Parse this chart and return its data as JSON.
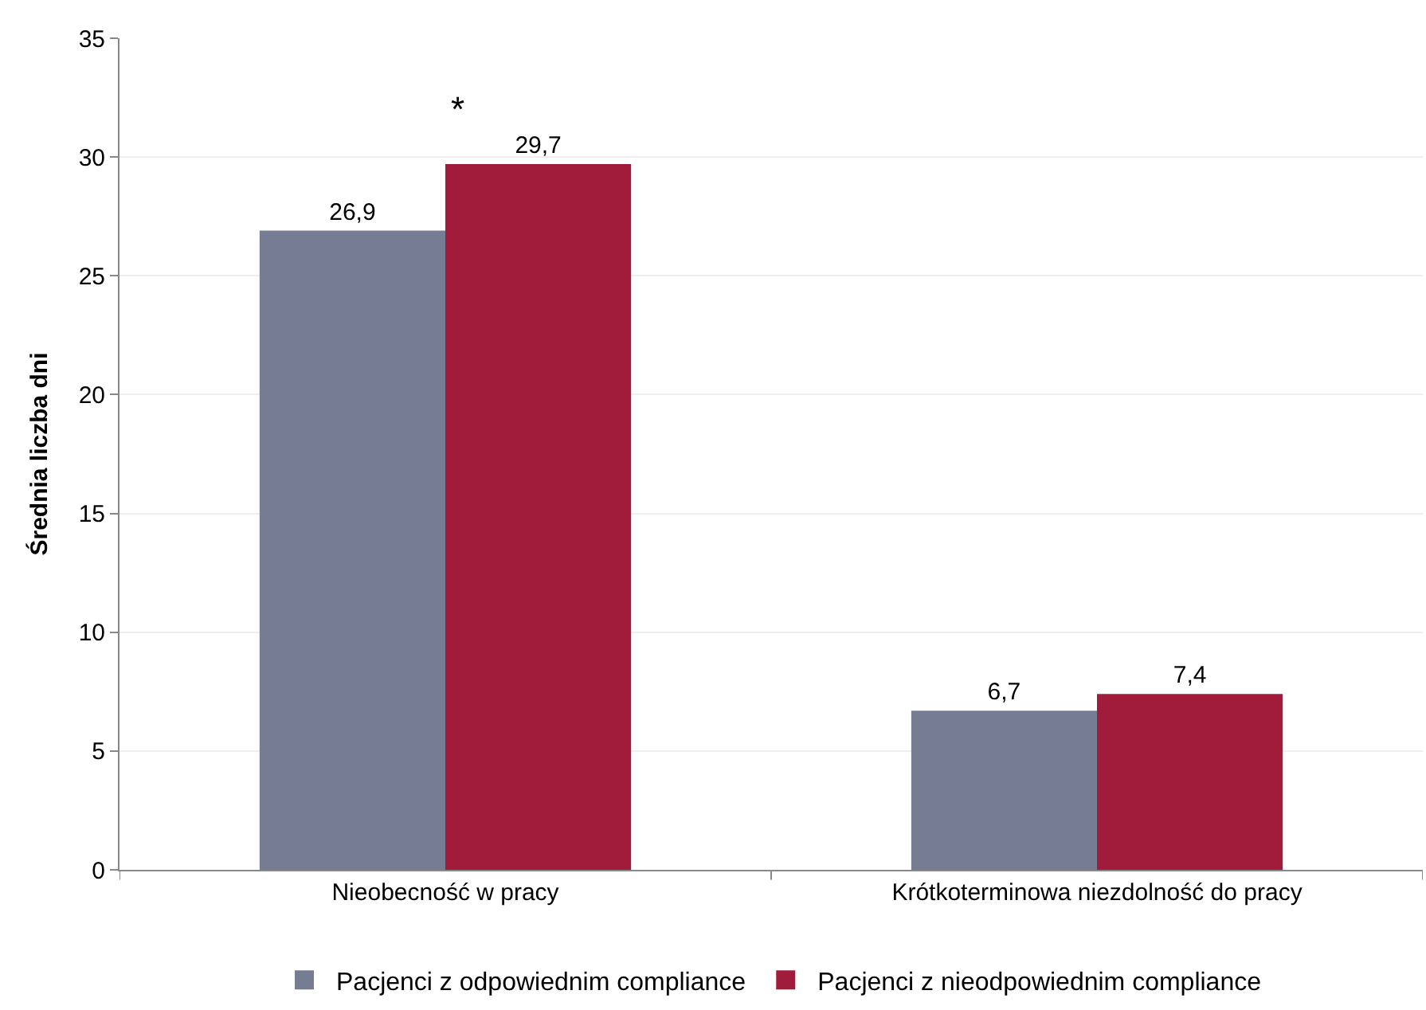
{
  "chart_data": {
    "type": "bar",
    "ylabel": "Średnia liczba dni",
    "categories": [
      "Nieobecność w pracy",
      "Krótkoterminowa niezdolność do pracy"
    ],
    "series": [
      {
        "name": "Pacjenci z odpowiednim compliance",
        "color": "#767c91",
        "values": [
          26.9,
          6.7
        ],
        "value_labels": [
          "26,9",
          "6,7"
        ]
      },
      {
        "name": "Pacjenci z nieodpowiednim compliance",
        "color": "#a01c3a",
        "values": [
          29.7,
          7.4
        ],
        "value_labels": [
          "29,7",
          "7,4"
        ]
      }
    ],
    "ylim": [
      0,
      35
    ],
    "yticks": [
      0,
      5,
      10,
      15,
      20,
      25,
      30,
      35
    ],
    "grid": "y",
    "legend": "bottom",
    "annotations": [
      {
        "text": "*",
        "x": "Nieobecność w pracy",
        "y": 29.7
      }
    ]
  }
}
